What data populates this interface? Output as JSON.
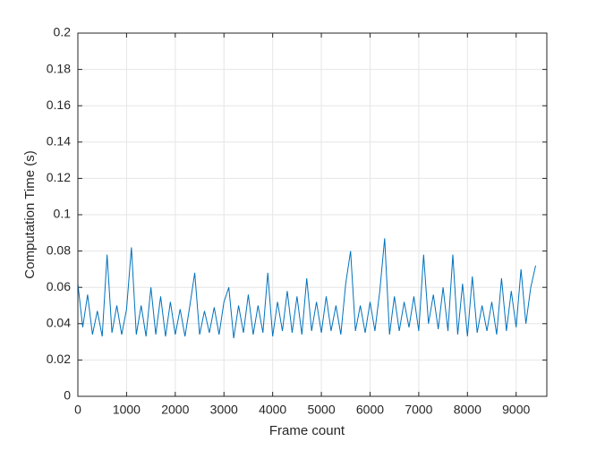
{
  "chart_data": {
    "type": "line",
    "xlabel": "Frame count",
    "ylabel": "Computation Time (s)",
    "x": [
      0,
      100,
      200,
      300,
      400,
      500,
      600,
      700,
      800,
      900,
      1000,
      1100,
      1200,
      1300,
      1400,
      1500,
      1600,
      1700,
      1800,
      1900,
      2000,
      2100,
      2200,
      2300,
      2400,
      2500,
      2600,
      2700,
      2800,
      2900,
      3000,
      3100,
      3200,
      3300,
      3400,
      3500,
      3600,
      3700,
      3800,
      3900,
      4000,
      4100,
      4200,
      4300,
      4400,
      4500,
      4600,
      4700,
      4800,
      4900,
      5000,
      5100,
      5200,
      5300,
      5400,
      5500,
      5600,
      5700,
      5800,
      5900,
      6000,
      6100,
      6200,
      6300,
      6400,
      6500,
      6600,
      6700,
      6800,
      6900,
      7000,
      7100,
      7200,
      7300,
      7400,
      7500,
      7600,
      7700,
      7800,
      7900,
      8000,
      8100,
      8200,
      8300,
      8400,
      8500,
      8600,
      8700,
      8800,
      8900,
      9000,
      9100,
      9200,
      9300,
      9400
    ],
    "series": [
      {
        "color": "#0072bd",
        "values": [
          0.062,
          0.038,
          0.056,
          0.034,
          0.047,
          0.033,
          0.078,
          0.035,
          0.05,
          0.034,
          0.048,
          0.082,
          0.034,
          0.05,
          0.033,
          0.06,
          0.034,
          0.055,
          0.033,
          0.052,
          0.034,
          0.048,
          0.033,
          0.05,
          0.068,
          0.034,
          0.047,
          0.035,
          0.049,
          0.034,
          0.052,
          0.06,
          0.032,
          0.05,
          0.035,
          0.056,
          0.034,
          0.05,
          0.035,
          0.068,
          0.033,
          0.052,
          0.036,
          0.058,
          0.035,
          0.055,
          0.034,
          0.065,
          0.036,
          0.052,
          0.035,
          0.055,
          0.036,
          0.05,
          0.034,
          0.062,
          0.08,
          0.036,
          0.05,
          0.035,
          0.052,
          0.036,
          0.058,
          0.087,
          0.034,
          0.055,
          0.036,
          0.052,
          0.038,
          0.055,
          0.036,
          0.078,
          0.04,
          0.056,
          0.037,
          0.06,
          0.036,
          0.078,
          0.034,
          0.062,
          0.033,
          0.066,
          0.035,
          0.05,
          0.036,
          0.052,
          0.034,
          0.065,
          0.036,
          0.058,
          0.038,
          0.07,
          0.04,
          0.06,
          0.072
        ]
      }
    ],
    "xlim": [
      0,
      9630
    ],
    "ylim": [
      0,
      0.2
    ],
    "xticks": [
      0,
      1000,
      2000,
      3000,
      4000,
      5000,
      6000,
      7000,
      8000,
      9000
    ],
    "yticks": [
      0,
      0.02,
      0.04,
      0.06,
      0.08,
      0.1,
      0.12,
      0.14,
      0.16,
      0.18,
      0.2
    ],
    "grid": true
  }
}
